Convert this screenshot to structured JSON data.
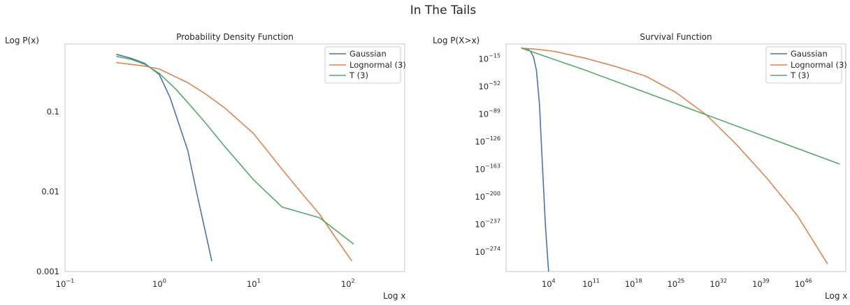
{
  "figure": {
    "title": "In The Tails"
  },
  "colors": {
    "gaussian": "#4c72b0",
    "lognormal": "#dd8452",
    "t3": "#55a868",
    "frame": "#cccccc"
  },
  "chart_data": [
    {
      "type": "line",
      "title": "Probability Density Function",
      "xlabel": "Log x",
      "ylabel": "Log P(x)",
      "xscale": "log",
      "yscale": "log",
      "xlim": [
        0.1,
        400
      ],
      "ylim": [
        0.001,
        0.7
      ],
      "grid": false,
      "legend": "top-right",
      "x_ticks": [
        {
          "value": 0.1,
          "base": "10",
          "exp": "−1"
        },
        {
          "value": 1,
          "base": "10",
          "exp": "0"
        },
        {
          "value": 10,
          "base": "10",
          "exp": "1"
        },
        {
          "value": 100,
          "base": "10",
          "exp": "2"
        }
      ],
      "y_ticks": [
        {
          "value": 0.1,
          "label": "0.1"
        },
        {
          "value": 0.01,
          "label": "0.01"
        },
        {
          "value": 0.001,
          "label": "0.001"
        }
      ],
      "series": [
        {
          "name": "Gaussian",
          "color_key": "gaussian",
          "x": [
            0.35,
            0.5,
            0.7,
            1.0,
            1.3,
            1.6,
            2.0,
            2.5,
            3.0,
            3.6
          ],
          "y": [
            0.52,
            0.465,
            0.4,
            0.29,
            0.15,
            0.072,
            0.033,
            0.0095,
            0.0036,
            0.00135
          ]
        },
        {
          "name": "Lognormal (3)",
          "color_key": "lognormal",
          "x": [
            0.35,
            0.7,
            1.0,
            2.0,
            3.0,
            5.0,
            7.0,
            10.0,
            20.0,
            30.0,
            50.0,
            70.0,
            110.0
          ],
          "y": [
            0.41,
            0.37,
            0.34,
            0.23,
            0.17,
            0.11,
            0.077,
            0.053,
            0.019,
            0.0106,
            0.0052,
            0.0029,
            0.00135
          ]
        },
        {
          "name": "T (3)",
          "color_key": "t3",
          "x": [
            0.35,
            0.5,
            0.7,
            1.0,
            1.5,
            2.0,
            3.0,
            5.0,
            10.0,
            20.0,
            50.0,
            115.0
          ],
          "y": [
            0.49,
            0.45,
            0.39,
            0.3,
            0.19,
            0.13,
            0.075,
            0.036,
            0.014,
            0.0064,
            0.0047,
            0.0022
          ]
        }
      ]
    },
    {
      "type": "line",
      "title": "Survival Function",
      "xlabel": "Log x",
      "ylabel": "Log P(X>x)",
      "xscale": "log",
      "yscale": "log",
      "xlim": [
        0.001,
        1e+53
      ],
      "ylim": [
        1e-300,
        100000.0
      ],
      "grid": false,
      "legend": "top-right",
      "x_ticks": [
        {
          "value": 10000.0,
          "base": "10",
          "exp": "4"
        },
        {
          "value": 100000000000.0,
          "base": "10",
          "exp": "11"
        },
        {
          "value": 1e+18,
          "base": "10",
          "exp": "18"
        },
        {
          "value": 1e+25,
          "base": "10",
          "exp": "25"
        },
        {
          "value": 1e+32,
          "base": "10",
          "exp": "32"
        },
        {
          "value": 1e+39,
          "base": "10",
          "exp": "39"
        },
        {
          "value": 1e+46,
          "base": "10",
          "exp": "46"
        }
      ],
      "y_ticks": [
        {
          "value": 1e-15,
          "base": "10",
          "exp": "−15"
        },
        {
          "value": 1e-52,
          "base": "10",
          "exp": "−52"
        },
        {
          "value": 1e-89,
          "base": "10",
          "exp": "−89"
        },
        {
          "value": 1e-126,
          "base": "10",
          "exp": "−126"
        },
        {
          "value": 1e-163,
          "base": "10",
          "exp": "−163"
        },
        {
          "value": 1e-200,
          "base": "10",
          "exp": "−200"
        },
        {
          "value": 1e-237,
          "base": "10",
          "exp": "−237"
        },
        {
          "value": 1e-274,
          "base": "10",
          "exp": "−274"
        }
      ],
      "series_log10": true,
      "series": [
        {
          "name": "Gaussian",
          "color_key": "gaussian",
          "log10_x": [
            -0.5,
            0.0,
            0.5,
            1.0,
            1.5,
            2.0,
            2.5,
            3.0,
            3.5,
            4.0
          ],
          "log10_y": [
            -0.5,
            -1.0,
            -2.0,
            -4.5,
            -12.0,
            -30.0,
            -75.0,
            -160.0,
            -240.0,
            -300.0
          ]
        },
        {
          "name": "Lognormal (3)",
          "color_key": "lognormal",
          "log10_x": [
            -0.5,
            2.0,
            5.0,
            10.0,
            15.0,
            20.0,
            25.0,
            30.0,
            35.0,
            40.0,
            45.0,
            50.0
          ],
          "log10_y": [
            -0.5,
            -2.0,
            -5.0,
            -14.0,
            -25.0,
            -38.0,
            -60.0,
            -90.0,
            -130.0,
            -175.0,
            -225.0,
            -290.0
          ]
        },
        {
          "name": "T (3)",
          "color_key": "t3",
          "log10_x": [
            -0.5,
            10.0,
            20.0,
            30.0,
            40.0,
            52.0
          ],
          "log10_y": [
            -0.5,
            -30.0,
            -60.0,
            -90.0,
            -120.0,
            -156.0
          ]
        }
      ]
    }
  ]
}
